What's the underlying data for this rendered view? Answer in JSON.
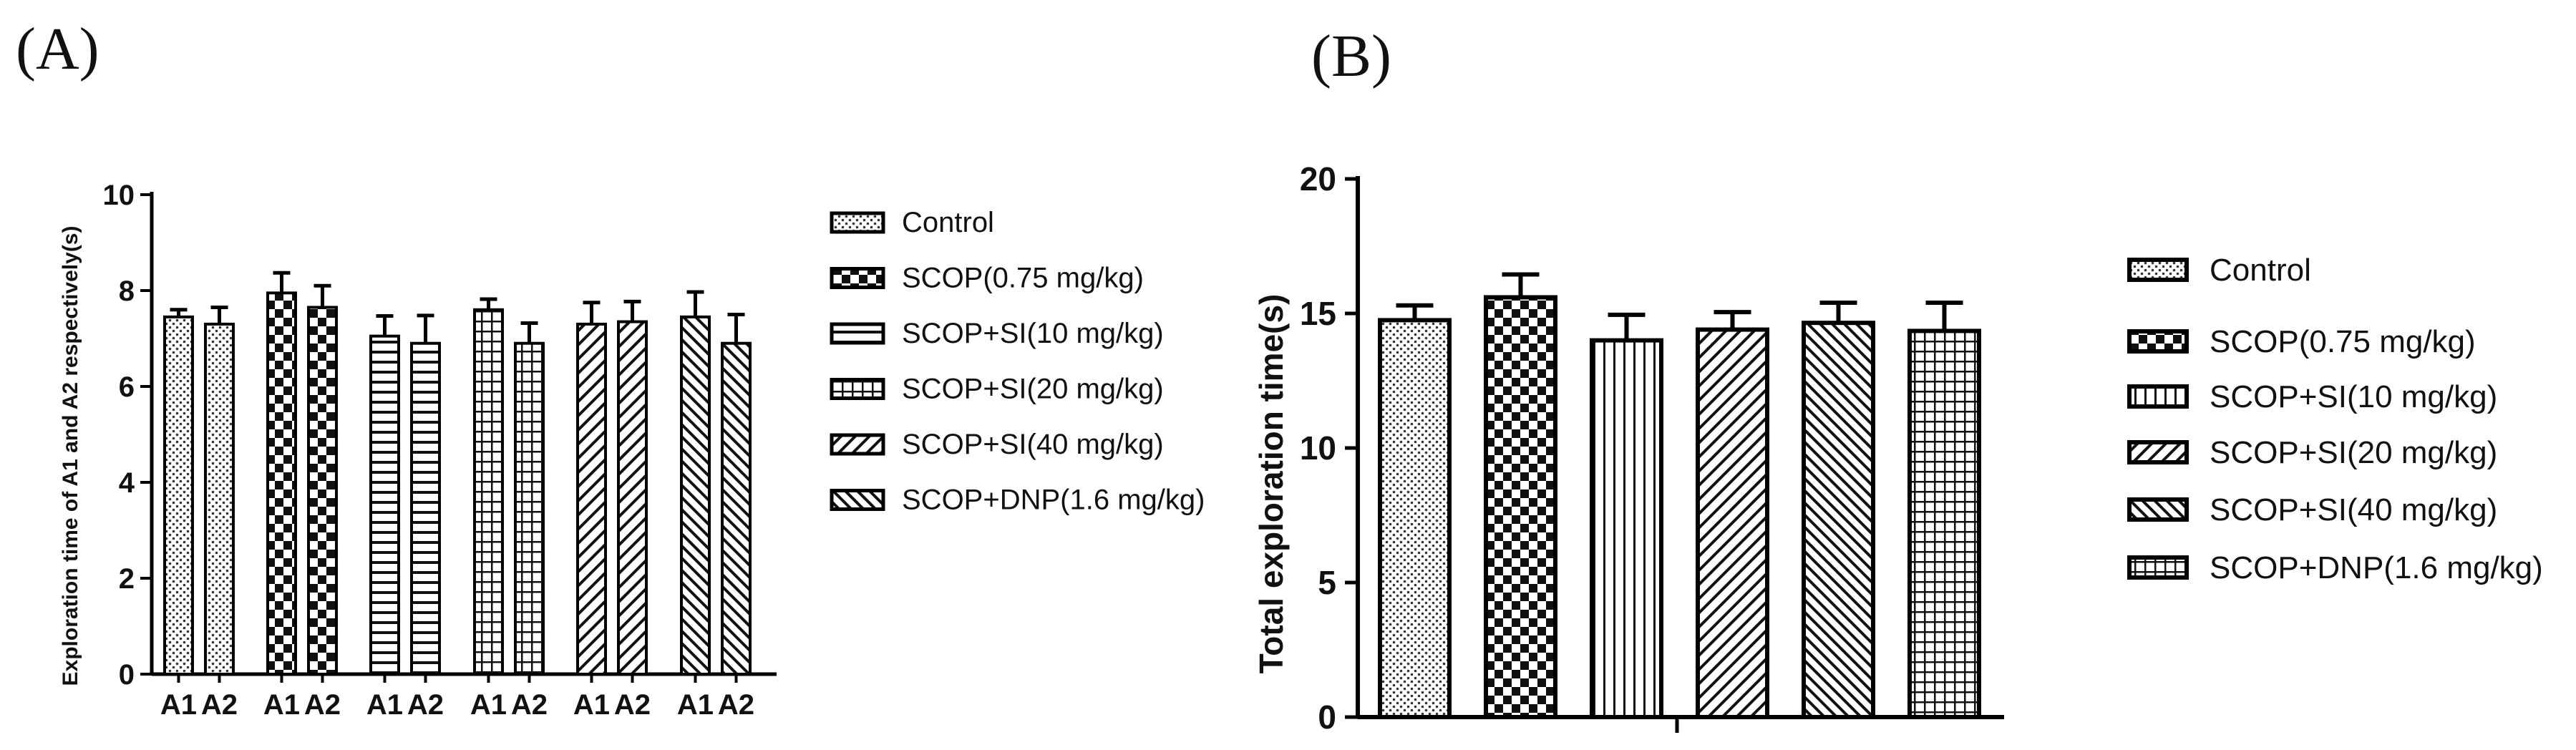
{
  "panels": {
    "a_label": "(A)",
    "b_label": "(B)"
  },
  "chart_data": [
    {
      "type": "bar",
      "panel": "A",
      "title": "",
      "xlabel": "",
      "ylabel": "Exploration time of A1 and A2 respectively(s)",
      "ylim": [
        0,
        10
      ],
      "yticks": [
        0,
        2,
        4,
        6,
        8,
        10
      ],
      "subcategories": [
        "A1",
        "A2"
      ],
      "legend_position": "right",
      "series": [
        {
          "name": "Control",
          "pattern": "dots",
          "values": [
            7.45,
            7.3
          ],
          "errors": [
            0.15,
            0.35
          ]
        },
        {
          "name": "SCOP(0.75 mg/kg)",
          "pattern": "checker",
          "values": [
            7.95,
            7.65
          ],
          "errors": [
            0.42,
            0.45
          ]
        },
        {
          "name": "SCOP+SI(10 mg/kg)",
          "pattern": "hlines",
          "values": [
            7.05,
            6.9
          ],
          "errors": [
            0.42,
            0.58
          ]
        },
        {
          "name": "SCOP+SI(20 mg/kg)",
          "pattern": "grid",
          "values": [
            7.6,
            6.9
          ],
          "errors": [
            0.22,
            0.42
          ]
        },
        {
          "name": "SCOP+SI(40 mg/kg)",
          "pattern": "diag",
          "values": [
            7.3,
            7.35
          ],
          "errors": [
            0.45,
            0.42
          ]
        },
        {
          "name": "SCOP+DNP(1.6 mg/kg)",
          "pattern": "antidiag",
          "values": [
            7.45,
            6.9
          ],
          "errors": [
            0.52,
            0.6
          ]
        }
      ]
    },
    {
      "type": "bar",
      "panel": "B",
      "title": "",
      "xlabel": "",
      "ylabel": "Total exploration time(s)",
      "ylim": [
        0,
        20
      ],
      "yticks": [
        0,
        5,
        10,
        15,
        20
      ],
      "legend_position": "right",
      "series": [
        {
          "name": "Control",
          "pattern": "dots",
          "value": 14.75,
          "error": 0.55
        },
        {
          "name": "SCOP(0.75 mg/kg)",
          "pattern": "checker",
          "value": 15.6,
          "error": 0.85
        },
        {
          "name": "SCOP+SI(10 mg/kg)",
          "pattern": "vlines",
          "value": 14.0,
          "error": 0.95
        },
        {
          "name": "SCOP+SI(20 mg/kg)",
          "pattern": "diag",
          "value": 14.4,
          "error": 0.65
        },
        {
          "name": "SCOP+SI(40 mg/kg)",
          "pattern": "antidiag",
          "value": 14.65,
          "error": 0.75
        },
        {
          "name": "SCOP+DNP(1.6 mg/kg)",
          "pattern": "grid",
          "value": 14.35,
          "error": 1.05
        }
      ]
    }
  ]
}
